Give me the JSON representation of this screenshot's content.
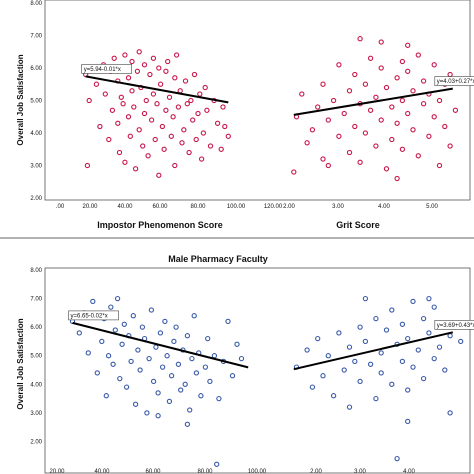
{
  "chart_data": [
    {
      "type": "scatter",
      "title": "",
      "ylabel": "Overall Job Satisfaction",
      "ylim": [
        2.0,
        8.0
      ],
      "y_ticks": [
        "2.00",
        "3.00",
        "4.00",
        "5.00",
        "6.00",
        "7.00",
        "8.00"
      ],
      "marker_color": "#c8194b",
      "grid": false,
      "subplots": [
        {
          "xlabel": "Impostor Phenomenon Score",
          "xlim": [
            0,
            120
          ],
          "x_ticks": [
            ".00",
            "20.00",
            "40.00",
            "60.00",
            "80.00",
            "100.00",
            "120.00"
          ],
          "fit_equation": "y=5.94-0.01*x",
          "fit": {
            "intercept": 5.94,
            "slope": -0.01,
            "x_range": [
              20,
              100
            ]
          },
          "points": [
            [
              20,
              5.8
            ],
            [
              21,
              3.0
            ],
            [
              22,
              5.0
            ],
            [
              25,
              6.0
            ],
            [
              26,
              5.5
            ],
            [
              28,
              4.2
            ],
            [
              30,
              6.1
            ],
            [
              31,
              5.2
            ],
            [
              33,
              3.8
            ],
            [
              34,
              5.9
            ],
            [
              35,
              4.7
            ],
            [
              36,
              6.3
            ],
            [
              38,
              5.6
            ],
            [
              38,
              4.3
            ],
            [
              39,
              3.4
            ],
            [
              40,
              6.0
            ],
            [
              40,
              5.1
            ],
            [
              41,
              4.9
            ],
            [
              42,
              6.4
            ],
            [
              42,
              3.1
            ],
            [
              44,
              5.7
            ],
            [
              44,
              4.5
            ],
            [
              45,
              3.9
            ],
            [
              46,
              6.2
            ],
            [
              46,
              5.3
            ],
            [
              47,
              4.8
            ],
            [
              48,
              2.9
            ],
            [
              49,
              5.9
            ],
            [
              50,
              6.5
            ],
            [
              50,
              4.1
            ],
            [
              51,
              5.4
            ],
            [
              52,
              3.6
            ],
            [
              53,
              6.1
            ],
            [
              53,
              4.6
            ],
            [
              54,
              5.0
            ],
            [
              55,
              3.3
            ],
            [
              56,
              5.8
            ],
            [
              57,
              4.4
            ],
            [
              58,
              6.3
            ],
            [
              58,
              5.2
            ],
            [
              59,
              3.8
            ],
            [
              60,
              4.9
            ],
            [
              61,
              6.0
            ],
            [
              61,
              2.7
            ],
            [
              62,
              5.5
            ],
            [
              63,
              4.2
            ],
            [
              64,
              3.5
            ],
            [
              65,
              5.9
            ],
            [
              65,
              4.7
            ],
            [
              66,
              6.2
            ],
            [
              67,
              5.1
            ],
            [
              68,
              3.9
            ],
            [
              69,
              4.5
            ],
            [
              70,
              5.7
            ],
            [
              70,
              3.0
            ],
            [
              71,
              6.4
            ],
            [
              72,
              4.8
            ],
            [
              73,
              5.3
            ],
            [
              74,
              3.7
            ],
            [
              75,
              4.1
            ],
            [
              76,
              5.6
            ],
            [
              77,
              4.9
            ],
            [
              78,
              3.4
            ],
            [
              79,
              5.0
            ],
            [
              80,
              4.4
            ],
            [
              81,
              5.8
            ],
            [
              82,
              3.8
            ],
            [
              83,
              4.6
            ],
            [
              84,
              5.2
            ],
            [
              85,
              3.2
            ],
            [
              86,
              4.0
            ],
            [
              87,
              5.4
            ],
            [
              88,
              4.7
            ],
            [
              90,
              3.6
            ],
            [
              92,
              5.0
            ],
            [
              94,
              4.3
            ],
            [
              96,
              3.5
            ],
            [
              97,
              4.8
            ],
            [
              98,
              4.2
            ],
            [
              100,
              3.9
            ]
          ]
        },
        {
          "xlabel": "Grit Score",
          "xlim": [
            1.5,
            5.2
          ],
          "x_ticks": [
            "2.00",
            "3.00",
            "4.00",
            "5.00"
          ],
          "fit_equation": "y=4.03+0.27*x",
          "fit": {
            "intercept": 4.03,
            "slope": 0.27,
            "x_range": [
              1.95,
              4.95
            ]
          },
          "points": [
            [
              1.95,
              2.8
            ],
            [
              2.0,
              4.5
            ],
            [
              2.1,
              5.2
            ],
            [
              2.2,
              3.7
            ],
            [
              2.3,
              4.1
            ],
            [
              2.4,
              4.8
            ],
            [
              2.5,
              5.5
            ],
            [
              2.5,
              3.2
            ],
            [
              2.6,
              4.4
            ],
            [
              2.7,
              5.0
            ],
            [
              2.8,
              3.9
            ],
            [
              2.8,
              6.1
            ],
            [
              2.9,
              4.6
            ],
            [
              3.0,
              5.3
            ],
            [
              3.0,
              3.4
            ],
            [
              3.1,
              4.2
            ],
            [
              3.1,
              5.8
            ],
            [
              3.2,
              4.9
            ],
            [
              3.2,
              3.1
            ],
            [
              3.3,
              5.5
            ],
            [
              3.3,
              4.0
            ],
            [
              3.4,
              6.3
            ],
            [
              3.4,
              4.7
            ],
            [
              3.5,
              3.6
            ],
            [
              3.5,
              5.1
            ],
            [
              3.6,
              4.4
            ],
            [
              3.6,
              6.0
            ],
            [
              3.7,
              5.4
            ],
            [
              3.7,
              2.9
            ],
            [
              3.8,
              4.8
            ],
            [
              3.8,
              3.8
            ],
            [
              3.9,
              5.7
            ],
            [
              3.9,
              4.3
            ],
            [
              4.0,
              6.2
            ],
            [
              4.0,
              5.0
            ],
            [
              4.0,
              3.5
            ],
            [
              4.1,
              4.6
            ],
            [
              4.1,
              5.9
            ],
            [
              4.2,
              4.1
            ],
            [
              4.2,
              5.3
            ],
            [
              4.3,
              3.3
            ],
            [
              4.3,
              6.4
            ],
            [
              4.4,
              4.9
            ],
            [
              4.4,
              5.6
            ],
            [
              4.5,
              3.9
            ],
            [
              4.5,
              5.2
            ],
            [
              4.6,
              4.5
            ],
            [
              4.6,
              6.1
            ],
            [
              4.7,
              5.0
            ],
            [
              4.7,
              3.0
            ],
            [
              4.8,
              5.5
            ],
            [
              4.8,
              4.2
            ],
            [
              4.9,
              5.8
            ],
            [
              4.9,
              3.6
            ],
            [
              5.0,
              4.7
            ],
            [
              3.2,
              6.9
            ],
            [
              3.6,
              6.8
            ],
            [
              4.1,
              6.7
            ],
            [
              2.6,
              3.0
            ],
            [
              3.9,
              2.6
            ]
          ]
        }
      ]
    },
    {
      "type": "scatter",
      "title": "Male Pharmacy Faculty",
      "ylabel": "Overall Job Satisfaction",
      "ylim": [
        1.0,
        8.0
      ],
      "y_ticks": [
        "2.00",
        "3.00",
        "4.00",
        "5.00",
        "6.00",
        "7.00",
        "8.00"
      ],
      "marker_color": "#3a5ba8",
      "grid": false,
      "subplots": [
        {
          "xlabel": "",
          "xlim": [
            15,
            110
          ],
          "x_ticks": [
            "20.00",
            "40.00",
            "60.00",
            "80.00",
            "100.00"
          ],
          "fit_equation": "y=6.65-0.02*x",
          "fit": {
            "intercept": 6.65,
            "slope": -0.02,
            "x_range": [
              25,
              103
            ]
          },
          "points": [
            [
              25,
              6.2
            ],
            [
              28,
              5.8
            ],
            [
              30,
              6.5
            ],
            [
              32,
              5.1
            ],
            [
              34,
              6.9
            ],
            [
              36,
              4.4
            ],
            [
              38,
              5.5
            ],
            [
              39,
              6.3
            ],
            [
              40,
              3.6
            ],
            [
              41,
              5.0
            ],
            [
              42,
              6.7
            ],
            [
              43,
              4.7
            ],
            [
              44,
              5.9
            ],
            [
              45,
              7.0
            ],
            [
              46,
              4.2
            ],
            [
              47,
              5.4
            ],
            [
              48,
              6.1
            ],
            [
              49,
              3.9
            ],
            [
              50,
              5.7
            ],
            [
              51,
              4.8
            ],
            [
              52,
              6.4
            ],
            [
              53,
              3.3
            ],
            [
              54,
              5.2
            ],
            [
              55,
              4.5
            ],
            [
              56,
              6.0
            ],
            [
              57,
              5.6
            ],
            [
              58,
              3.0
            ],
            [
              59,
              4.9
            ],
            [
              60,
              6.6
            ],
            [
              61,
              4.1
            ],
            [
              62,
              5.3
            ],
            [
              63,
              3.7
            ],
            [
              64,
              5.8
            ],
            [
              65,
              4.6
            ],
            [
              66,
              6.2
            ],
            [
              67,
              5.0
            ],
            [
              68,
              3.4
            ],
            [
              69,
              4.3
            ],
            [
              70,
              5.5
            ],
            [
              71,
              6.0
            ],
            [
              72,
              4.7
            ],
            [
              73,
              3.8
            ],
            [
              74,
              5.2
            ],
            [
              75,
              4.0
            ],
            [
              76,
              5.7
            ],
            [
              77,
              3.1
            ],
            [
              78,
              4.9
            ],
            [
              79,
              6.4
            ],
            [
              80,
              4.4
            ],
            [
              81,
              5.1
            ],
            [
              82,
              3.6
            ],
            [
              84,
              4.6
            ],
            [
              85,
              5.6
            ],
            [
              86,
              4.1
            ],
            [
              88,
              5.0
            ],
            [
              90,
              3.5
            ],
            [
              92,
              4.8
            ],
            [
              94,
              6.2
            ],
            [
              96,
              4.3
            ],
            [
              98,
              5.4
            ],
            [
              100,
              4.9
            ],
            [
              89,
              1.2
            ],
            [
              63,
              2.9
            ],
            [
              76,
              2.6
            ]
          ]
        },
        {
          "xlabel": "",
          "xlim": [
            1.5,
            5.2
          ],
          "x_ticks": [
            "2.00",
            "3.00",
            "4.00"
          ],
          "fit_equation": "y=3.69+0.43*x",
          "fit": {
            "intercept": 3.69,
            "slope": 0.43,
            "x_range": [
              1.95,
              4.95
            ]
          },
          "points": [
            [
              2.0,
              4.6
            ],
            [
              2.2,
              5.2
            ],
            [
              2.3,
              3.9
            ],
            [
              2.4,
              5.6
            ],
            [
              2.5,
              4.3
            ],
            [
              2.6,
              5.0
            ],
            [
              2.7,
              3.6
            ],
            [
              2.8,
              5.8
            ],
            [
              2.9,
              4.5
            ],
            [
              3.0,
              5.3
            ],
            [
              3.0,
              3.2
            ],
            [
              3.1,
              4.8
            ],
            [
              3.2,
              6.0
            ],
            [
              3.2,
              4.1
            ],
            [
              3.3,
              5.5
            ],
            [
              3.4,
              4.7
            ],
            [
              3.5,
              6.3
            ],
            [
              3.5,
              3.5
            ],
            [
              3.6,
              5.1
            ],
            [
              3.6,
              4.4
            ],
            [
              3.7,
              5.9
            ],
            [
              3.8,
              4.0
            ],
            [
              3.8,
              6.6
            ],
            [
              3.9,
              5.4
            ],
            [
              4.0,
              4.8
            ],
            [
              4.0,
              6.1
            ],
            [
              4.1,
              3.8
            ],
            [
              4.1,
              5.6
            ],
            [
              4.2,
              6.9
            ],
            [
              4.2,
              4.6
            ],
            [
              4.3,
              5.2
            ],
            [
              4.4,
              6.3
            ],
            [
              4.4,
              4.2
            ],
            [
              4.5,
              5.8
            ],
            [
              4.6,
              6.7
            ],
            [
              4.6,
              4.9
            ],
            [
              4.7,
              5.3
            ],
            [
              4.8,
              6.1
            ],
            [
              4.8,
              4.5
            ],
            [
              4.9,
              5.7
            ],
            [
              4.9,
              3.0
            ],
            [
              4.5,
              7.0
            ],
            [
              3.3,
              7.0
            ],
            [
              4.1,
              2.7
            ],
            [
              3.9,
              1.4
            ],
            [
              5.1,
              5.5
            ]
          ]
        }
      ]
    }
  ]
}
